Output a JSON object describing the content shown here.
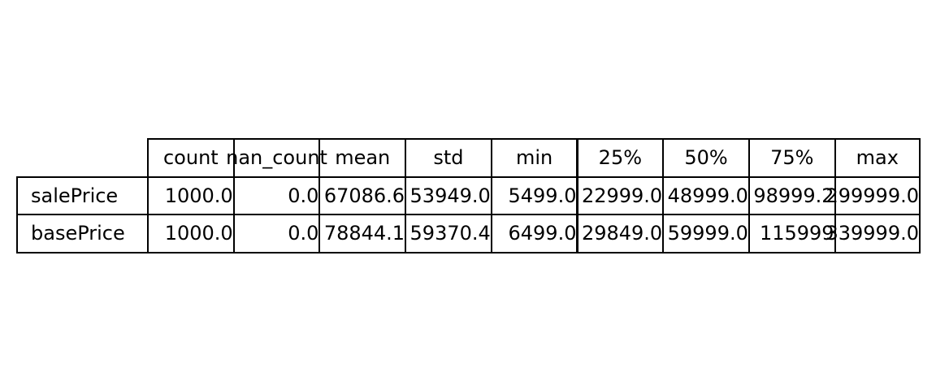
{
  "chart_data": {
    "type": "table",
    "columns": [
      "count",
      "nan_count",
      "mean",
      "std",
      "min",
      "25%",
      "50%",
      "75%",
      "max"
    ],
    "rows": [
      {
        "label": "salePrice",
        "values": [
          "1000.0",
          "0.0",
          "67086.6",
          "53949.0",
          "5499.0",
          "22999.0",
          "48999.0",
          "98999.2",
          "299999.0"
        ]
      },
      {
        "label": "basePrice",
        "values": [
          "1000.0",
          "0.0",
          "78844.1",
          "59370.4",
          "6499.0",
          "29849.0",
          "59999.0",
          "115999",
          "339999.0"
        ]
      }
    ]
  }
}
